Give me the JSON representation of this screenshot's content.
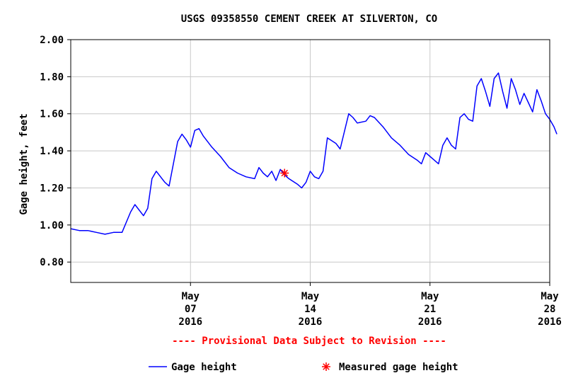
{
  "chart_data": {
    "type": "line",
    "title": "USGS 09358550 CEMENT CREEK AT SILVERTON, CO",
    "ylabel": "Gage height, feet",
    "xlabel": "",
    "ylim": [
      0.69,
      2.0
    ],
    "xlim": [
      "2016-04-30",
      "2016-05-28"
    ],
    "grid": true,
    "y_ticks": [
      "2.00",
      "1.80",
      "1.60",
      "1.40",
      "1.20",
      "1.00",
      "0.80"
    ],
    "x_ticks": [
      {
        "date": "2016-05-07",
        "month": "May",
        "day": "07",
        "year": "2016"
      },
      {
        "date": "2016-05-14",
        "month": "May",
        "day": "14",
        "year": "2016"
      },
      {
        "date": "2016-05-21",
        "month": "May",
        "day": "21",
        "year": "2016"
      },
      {
        "date": "2016-05-28",
        "month": "May",
        "day": "28",
        "year": "2016"
      }
    ],
    "notice": "---- Provisional Data Subject to Revision ----",
    "series": [
      {
        "name": "Gage height",
        "color": "#0000ff",
        "points": [
          [
            "2016-04-30 00:00",
            0.98
          ],
          [
            "2016-04-30 12:00",
            0.97
          ],
          [
            "2016-05-01 00:00",
            0.97
          ],
          [
            "2016-05-01 12:00",
            0.96
          ],
          [
            "2016-05-02 00:00",
            0.95
          ],
          [
            "2016-05-02 12:00",
            0.96
          ],
          [
            "2016-05-03 00:00",
            0.96
          ],
          [
            "2016-05-03 12:00",
            1.07
          ],
          [
            "2016-05-03 18:00",
            1.11
          ],
          [
            "2016-05-04 06:00",
            1.05
          ],
          [
            "2016-05-04 12:00",
            1.09
          ],
          [
            "2016-05-04 18:00",
            1.25
          ],
          [
            "2016-05-05 00:00",
            1.29
          ],
          [
            "2016-05-05 12:00",
            1.23
          ],
          [
            "2016-05-05 18:00",
            1.21
          ],
          [
            "2016-05-06 06:00",
            1.45
          ],
          [
            "2016-05-06 12:00",
            1.49
          ],
          [
            "2016-05-06 18:00",
            1.46
          ],
          [
            "2016-05-07 00:00",
            1.42
          ],
          [
            "2016-05-07 06:00",
            1.51
          ],
          [
            "2016-05-07 12:00",
            1.52
          ],
          [
            "2016-05-07 18:00",
            1.48
          ],
          [
            "2016-05-08 06:00",
            1.42
          ],
          [
            "2016-05-08 18:00",
            1.37
          ],
          [
            "2016-05-09 06:00",
            1.31
          ],
          [
            "2016-05-09 18:00",
            1.28
          ],
          [
            "2016-05-10 06:00",
            1.26
          ],
          [
            "2016-05-10 18:00",
            1.25
          ],
          [
            "2016-05-11 00:00",
            1.31
          ],
          [
            "2016-05-11 06:00",
            1.28
          ],
          [
            "2016-05-11 12:00",
            1.26
          ],
          [
            "2016-05-11 18:00",
            1.29
          ],
          [
            "2016-05-12 00:00",
            1.24
          ],
          [
            "2016-05-12 06:00",
            1.3
          ],
          [
            "2016-05-12 12:00",
            1.27
          ],
          [
            "2016-05-12 18:00",
            1.25
          ],
          [
            "2016-05-13 06:00",
            1.22
          ],
          [
            "2016-05-13 12:00",
            1.2
          ],
          [
            "2016-05-13 18:00",
            1.23
          ],
          [
            "2016-05-14 00:00",
            1.29
          ],
          [
            "2016-05-14 06:00",
            1.26
          ],
          [
            "2016-05-14 12:00",
            1.25
          ],
          [
            "2016-05-14 18:00",
            1.29
          ],
          [
            "2016-05-15 00:00",
            1.47
          ],
          [
            "2016-05-15 12:00",
            1.44
          ],
          [
            "2016-05-15 18:00",
            1.41
          ],
          [
            "2016-05-16 06:00",
            1.6
          ],
          [
            "2016-05-16 12:00",
            1.58
          ],
          [
            "2016-05-16 18:00",
            1.55
          ],
          [
            "2016-05-17 06:00",
            1.56
          ],
          [
            "2016-05-17 12:00",
            1.59
          ],
          [
            "2016-05-17 18:00",
            1.58
          ],
          [
            "2016-05-18 06:00",
            1.53
          ],
          [
            "2016-05-18 18:00",
            1.47
          ],
          [
            "2016-05-19 06:00",
            1.43
          ],
          [
            "2016-05-19 18:00",
            1.38
          ],
          [
            "2016-05-20 06:00",
            1.35
          ],
          [
            "2016-05-20 12:00",
            1.33
          ],
          [
            "2016-05-20 18:00",
            1.39
          ],
          [
            "2016-05-21 00:00",
            1.37
          ],
          [
            "2016-05-21 06:00",
            1.35
          ],
          [
            "2016-05-21 12:00",
            1.33
          ],
          [
            "2016-05-21 18:00",
            1.43
          ],
          [
            "2016-05-22 00:00",
            1.47
          ],
          [
            "2016-05-22 06:00",
            1.43
          ],
          [
            "2016-05-22 12:00",
            1.41
          ],
          [
            "2016-05-22 18:00",
            1.58
          ],
          [
            "2016-05-23 00:00",
            1.6
          ],
          [
            "2016-05-23 06:00",
            1.57
          ],
          [
            "2016-05-23 12:00",
            1.56
          ],
          [
            "2016-05-23 18:00",
            1.75
          ],
          [
            "2016-05-24 00:00",
            1.79
          ],
          [
            "2016-05-24 06:00",
            1.72
          ],
          [
            "2016-05-24 12:00",
            1.64
          ],
          [
            "2016-05-24 18:00",
            1.79
          ],
          [
            "2016-05-25 00:00",
            1.82
          ],
          [
            "2016-05-25 06:00",
            1.72
          ],
          [
            "2016-05-25 12:00",
            1.63
          ],
          [
            "2016-05-25 18:00",
            1.79
          ],
          [
            "2016-05-26 00:00",
            1.73
          ],
          [
            "2016-05-26 06:00",
            1.65
          ],
          [
            "2016-05-26 12:00",
            1.71
          ],
          [
            "2016-05-26 18:00",
            1.66
          ],
          [
            "2016-05-27 00:00",
            1.61
          ],
          [
            "2016-05-27 06:00",
            1.73
          ],
          [
            "2016-05-27 12:00",
            1.67
          ],
          [
            "2016-05-27 18:00",
            1.6
          ],
          [
            "2016-05-28 00:00",
            1.57
          ],
          [
            "2016-05-28 06:00",
            1.53
          ],
          [
            "2016-05-28 10:00",
            1.49
          ]
        ]
      },
      {
        "name": "Measured gage height",
        "color": "#ff0000",
        "marker": "asterisk",
        "points": [
          [
            "2016-05-12 12:00",
            1.28
          ]
        ]
      }
    ],
    "legend_position": "bottom"
  }
}
